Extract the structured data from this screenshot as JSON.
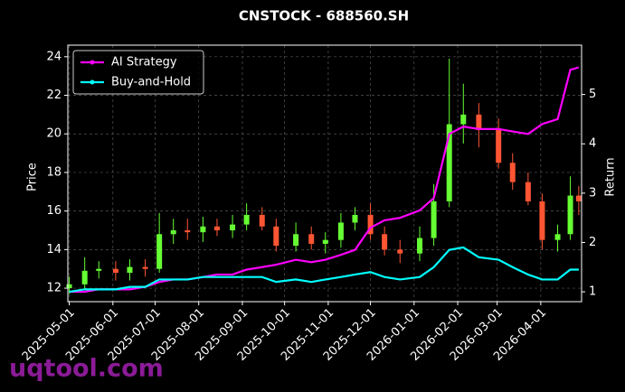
{
  "chart_data": {
    "type": "candlestick",
    "title": "CNSTOCK - 688560.SH",
    "ylabel": "Price",
    "y2label": "Return",
    "watermark": "uqtool.com",
    "x": [
      "2025-05-01",
      "2025-05-12",
      "2025-05-22",
      "2025-06-03",
      "2025-06-13",
      "2025-06-24",
      "2025-07-04",
      "2025-07-14",
      "2025-07-24",
      "2025-08-04",
      "2025-08-14",
      "2025-08-25",
      "2025-09-04",
      "2025-09-15",
      "2025-09-25",
      "2025-10-09",
      "2025-10-20",
      "2025-10-30",
      "2025-11-10",
      "2025-11-20",
      "2025-12-01",
      "2025-12-11",
      "2025-12-22",
      "2026-01-05",
      "2026-01-15",
      "2026-01-26",
      "2026-02-05",
      "2026-02-16",
      "2026-03-02",
      "2026-03-12",
      "2026-03-23",
      "2026-04-02",
      "2026-04-13",
      "2026-04-22",
      "2026-04-28"
    ],
    "open": [
      12.0,
      12.2,
      12.9,
      13.0,
      12.8,
      13.1,
      13.0,
      14.8,
      15.0,
      14.9,
      15.2,
      15.0,
      15.3,
      15.8,
      15.2,
      14.2,
      14.8,
      14.3,
      14.5,
      15.4,
      15.8,
      14.8,
      14.0,
      13.8,
      14.6,
      16.5,
      20.5,
      21.0,
      20.2,
      18.5,
      17.5,
      16.5,
      14.5,
      14.8,
      16.8
    ],
    "high": [
      12.6,
      13.6,
      13.4,
      13.4,
      13.5,
      13.5,
      15.9,
      15.6,
      15.6,
      15.7,
      15.6,
      15.8,
      16.4,
      16.2,
      15.6,
      15.4,
      15.2,
      14.9,
      15.9,
      16.2,
      16.4,
      15.2,
      14.5,
      15.2,
      17.4,
      23.9,
      22.6,
      21.6,
      20.8,
      19.0,
      18.0,
      16.9,
      15.3,
      17.8,
      17.3
    ],
    "low": [
      11.7,
      11.9,
      12.5,
      12.4,
      12.4,
      12.6,
      12.8,
      14.3,
      14.5,
      14.4,
      14.7,
      14.6,
      15.0,
      15.0,
      13.9,
      13.9,
      14.0,
      13.8,
      14.1,
      15.0,
      14.5,
      13.7,
      13.3,
      13.4,
      14.2,
      16.2,
      19.5,
      19.3,
      18.2,
      17.1,
      16.3,
      14.0,
      13.9,
      14.5,
      15.8
    ],
    "close": [
      12.2,
      12.9,
      13.0,
      12.8,
      13.1,
      13.0,
      14.8,
      15.0,
      14.9,
      15.2,
      15.0,
      15.3,
      15.8,
      15.2,
      14.2,
      14.8,
      14.3,
      14.5,
      15.4,
      15.8,
      14.8,
      14.0,
      13.8,
      14.6,
      16.5,
      20.5,
      21.0,
      20.2,
      18.5,
      17.5,
      16.5,
      14.5,
      14.8,
      16.8,
      16.5
    ],
    "up_color": "#66ff33",
    "down_color": "#ff5533",
    "series": [
      {
        "name": "AI Strategy",
        "color": "#ff00ff",
        "axis": "y2",
        "values": [
          1.0,
          1.0,
          1.05,
          1.05,
          1.05,
          1.1,
          1.2,
          1.25,
          1.25,
          1.3,
          1.35,
          1.35,
          1.45,
          1.5,
          1.55,
          1.65,
          1.6,
          1.65,
          1.75,
          1.85,
          2.3,
          2.45,
          2.5,
          2.65,
          2.9,
          4.2,
          4.35,
          4.3,
          4.3,
          4.25,
          4.2,
          4.4,
          4.5,
          5.5,
          5.55
        ]
      },
      {
        "name": "Buy-and-Hold",
        "color": "#00ffff",
        "axis": "y2",
        "values": [
          1.0,
          1.05,
          1.05,
          1.05,
          1.1,
          1.1,
          1.25,
          1.25,
          1.25,
          1.3,
          1.3,
          1.3,
          1.3,
          1.3,
          1.2,
          1.25,
          1.2,
          1.25,
          1.3,
          1.35,
          1.4,
          1.3,
          1.25,
          1.3,
          1.5,
          1.85,
          1.9,
          1.7,
          1.65,
          1.5,
          1.35,
          1.25,
          1.25,
          1.45,
          1.45
        ]
      }
    ],
    "xlim": [
      "2025-04-30",
      "2026-04-30"
    ],
    "xticks": [
      "2025-05-01",
      "2025-06-01",
      "2025-07-01",
      "2025-08-01",
      "2025-09-01",
      "2025-10-01",
      "2025-11-01",
      "2025-12-01",
      "2026-01-01",
      "2026-02-01",
      "2026-03-01",
      "2026-04-01"
    ],
    "ylim": [
      11.3,
      24.6
    ],
    "yticks": [
      12,
      14,
      16,
      18,
      20,
      22,
      24
    ],
    "y2lim": [
      0.8,
      6.0
    ],
    "y2ticks": [
      1,
      2,
      3,
      4,
      5
    ],
    "grid": true,
    "legend": "upper left"
  }
}
